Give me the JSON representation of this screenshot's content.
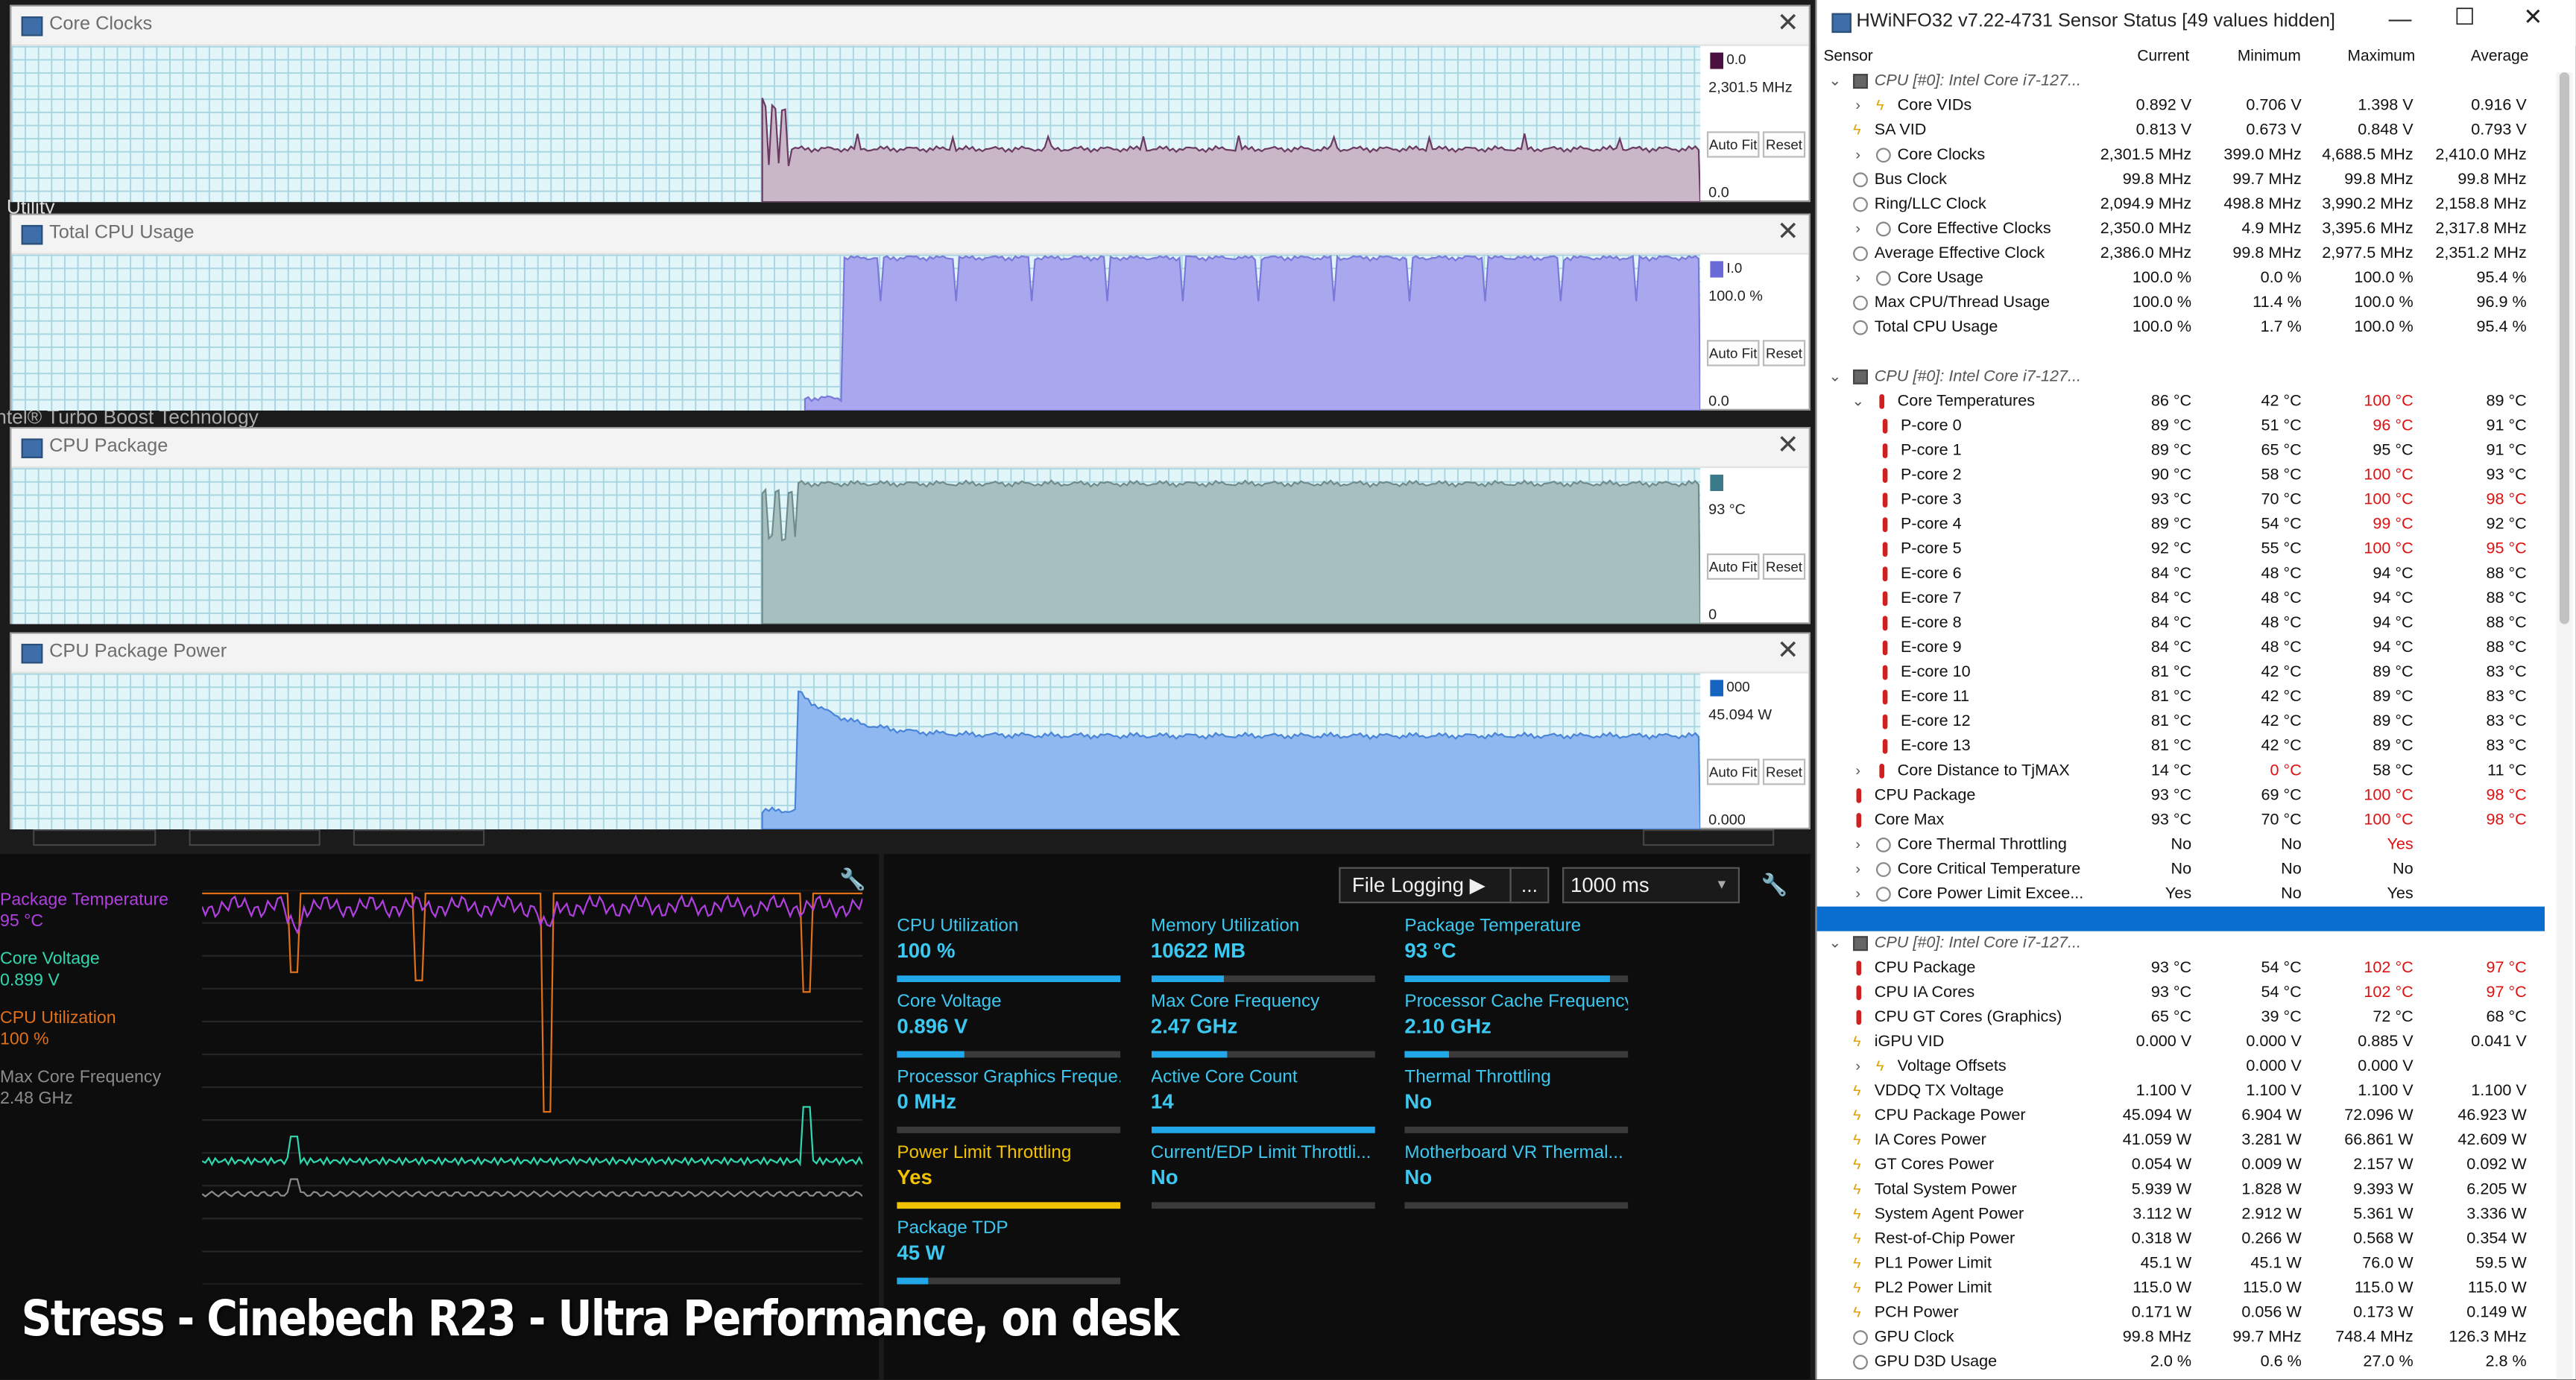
{
  "background_app": {
    "fragments": [
      "Utility",
      "Intel® Turbo Boost Technology"
    ]
  },
  "graph_windows": [
    {
      "title": "Core Clocks",
      "max_label": "0.0",
      "current": "2,301.5 MHz",
      "min_label": "0.0",
      "autofit": "Auto Fit",
      "reset": "Reset",
      "swatch": "#4a1040",
      "fill": "#c9b7c8",
      "stroke": "#6b3a62",
      "level": 0.34,
      "onset": 0.445
    },
    {
      "title": "Total CPU Usage",
      "max_label": "I.0",
      "current": "100.0 %",
      "min_label": "0.0",
      "autofit": "Auto Fit",
      "reset": "Reset",
      "swatch": "#6a6ad8",
      "fill": "#a9a8ee",
      "stroke": "#7a78d8",
      "level": 0.98,
      "onset": 0.47
    },
    {
      "title": "CPU Package",
      "max_label": "",
      "current": "93 °C",
      "min_label": "0",
      "autofit": "Auto Fit",
      "reset": "Reset",
      "swatch": "#3b7a8a",
      "fill": "#a8bfbf",
      "stroke": "#6f8c8c",
      "level": 0.9,
      "onset": 0.445
    },
    {
      "title": "CPU Package Power",
      "max_label": "000",
      "current": "45.094 W",
      "min_label": "0.000",
      "autofit": "Auto Fit",
      "reset": "Reset",
      "swatch": "#1565c0",
      "fill": "#90b8f0",
      "stroke": "#4a84d8",
      "level": 0.6,
      "onset": 0.445
    }
  ],
  "left_monitor": {
    "legend": [
      {
        "name": "Package Temperature",
        "value": "95 °C",
        "color": "#b040e0"
      },
      {
        "name": "Core Voltage",
        "value": "0.899 V",
        "color": "#30d8b0"
      },
      {
        "name": "CPU Utilization",
        "value": "100 %",
        "color": "#e0701a"
      },
      {
        "name": "Max Core Frequency",
        "value": "2.48 GHz",
        "color": "#8c8c8c"
      }
    ]
  },
  "right_monitor": {
    "file_logging": "File Logging ▶",
    "more": "...",
    "interval": "1000 ms",
    "tiles": [
      {
        "label": "CPU Utilization",
        "value": "100 %",
        "fill": 1.0,
        "warn": false
      },
      {
        "label": "Memory Utilization",
        "value": "10622  MB",
        "fill": 0.33,
        "warn": false
      },
      {
        "label": "Package Temperature",
        "value": "93 °C",
        "fill": 0.92,
        "warn": false
      },
      {
        "label": "Core Voltage",
        "value": "0.896 V",
        "fill": 0.3,
        "warn": false
      },
      {
        "label": "Max Core Frequency",
        "value": "2.47 GHz",
        "fill": 0.34,
        "warn": false
      },
      {
        "label": "Processor Cache Frequency",
        "value": "2.10 GHz",
        "fill": 0.2,
        "warn": false
      },
      {
        "label": "Processor Graphics Freque...",
        "value": "0 MHz",
        "fill": 0.0,
        "warn": false
      },
      {
        "label": "Active Core Count",
        "value": "14",
        "fill": 1.0,
        "warn": false
      },
      {
        "label": "Thermal Throttling",
        "value": "No",
        "fill": 0.0,
        "warn": false
      },
      {
        "label": "Power Limit Throttling",
        "value": "Yes",
        "fill": 1.0,
        "warn": true
      },
      {
        "label": "Current/EDP Limit Throttli...",
        "value": "No",
        "fill": 0.0,
        "warn": false
      },
      {
        "label": "Motherboard VR Thermal...",
        "value": "No",
        "fill": 0.0,
        "warn": false
      },
      {
        "label": "Package TDP",
        "value": "45 W",
        "fill": 0.14,
        "warn": false
      }
    ]
  },
  "overlay": {
    "caption": "Stress - Cinebech R23 - Ultra Performance, on desk"
  },
  "hwinfo": {
    "title": "HWiNFO32 v7.22-4731 Sensor Status [49 values hidden]",
    "columns": [
      "Sensor",
      "Current",
      "Minimum",
      "Maximum",
      "Average"
    ],
    "rows": [
      {
        "n": "CPU [#0]: Intel Core i7-127...",
        "g": 1,
        "e": "v",
        "i": "chip"
      },
      {
        "n": "Core VIDs",
        "v": [
          "0.892 V",
          "0.706 V",
          "1.398 V",
          "0.916 V"
        ],
        "e": ">",
        "s": 1,
        "i": "volt"
      },
      {
        "n": "SA VID",
        "v": [
          "0.813 V",
          "0.673 V",
          "0.848 V",
          "0.793 V"
        ],
        "i": "volt"
      },
      {
        "n": "Core Clocks",
        "v": [
          "2,301.5 MHz",
          "399.0 MHz",
          "4,688.5 MHz",
          "2,410.0 MHz"
        ],
        "e": ">",
        "s": 1,
        "i": "clock"
      },
      {
        "n": "Bus Clock",
        "v": [
          "99.8 MHz",
          "99.7 MHz",
          "99.8 MHz",
          "99.8 MHz"
        ],
        "i": "clock"
      },
      {
        "n": "Ring/LLC Clock",
        "v": [
          "2,094.9 MHz",
          "498.8 MHz",
          "3,990.2 MHz",
          "2,158.8 MHz"
        ],
        "i": "clock"
      },
      {
        "n": "Core Effective Clocks",
        "v": [
          "2,350.0 MHz",
          "4.9 MHz",
          "3,395.6 MHz",
          "2,317.8 MHz"
        ],
        "e": ">",
        "s": 1,
        "i": "clock"
      },
      {
        "n": "Average Effective Clock",
        "v": [
          "2,386.0 MHz",
          "99.8 MHz",
          "2,977.5 MHz",
          "2,351.2 MHz"
        ],
        "i": "clock"
      },
      {
        "n": "Core Usage",
        "v": [
          "100.0 %",
          "0.0 %",
          "100.0 %",
          "95.4 %"
        ],
        "e": ">",
        "s": 1,
        "i": "clock"
      },
      {
        "n": "Max CPU/Thread Usage",
        "v": [
          "100.0 %",
          "11.4 %",
          "100.0 %",
          "96.9 %"
        ],
        "i": "clock"
      },
      {
        "n": "Total CPU Usage",
        "v": [
          "100.0 %",
          "1.7 %",
          "100.0 %",
          "95.4 %"
        ],
        "i": "clock"
      },
      {
        "n": "",
        "blank": 1
      },
      {
        "n": "CPU [#0]: Intel Core i7-127...",
        "g": 1,
        "e": "v",
        "i": "chip"
      },
      {
        "n": "Core Temperatures",
        "v": [
          "86 °C",
          "42 °C",
          "100 °C",
          "89 °C"
        ],
        "e": "v",
        "s": 1,
        "i": "temp",
        "r": [
          2
        ]
      },
      {
        "n": "P-core 0",
        "v": [
          "89 °C",
          "51 °C",
          "96 °C",
          "91 °C"
        ],
        "s": 2,
        "i": "temp",
        "r": [
          2
        ]
      },
      {
        "n": "P-core 1",
        "v": [
          "89 °C",
          "65 °C",
          "95 °C",
          "91 °C"
        ],
        "s": 2,
        "i": "temp"
      },
      {
        "n": "P-core 2",
        "v": [
          "90 °C",
          "58 °C",
          "100 °C",
          "93 °C"
        ],
        "s": 2,
        "i": "temp",
        "r": [
          2
        ]
      },
      {
        "n": "P-core 3",
        "v": [
          "93 °C",
          "70 °C",
          "100 °C",
          "98 °C"
        ],
        "s": 2,
        "i": "temp",
        "r": [
          2,
          3
        ]
      },
      {
        "n": "P-core 4",
        "v": [
          "89 °C",
          "54 °C",
          "99 °C",
          "92 °C"
        ],
        "s": 2,
        "i": "temp",
        "r": [
          2
        ]
      },
      {
        "n": "P-core 5",
        "v": [
          "92 °C",
          "55 °C",
          "100 °C",
          "95 °C"
        ],
        "s": 2,
        "i": "temp",
        "r": [
          2,
          3
        ]
      },
      {
        "n": "E-core 6",
        "v": [
          "84 °C",
          "48 °C",
          "94 °C",
          "88 °C"
        ],
        "s": 2,
        "i": "temp"
      },
      {
        "n": "E-core 7",
        "v": [
          "84 °C",
          "48 °C",
          "94 °C",
          "88 °C"
        ],
        "s": 2,
        "i": "temp"
      },
      {
        "n": "E-core 8",
        "v": [
          "84 °C",
          "48 °C",
          "94 °C",
          "88 °C"
        ],
        "s": 2,
        "i": "temp"
      },
      {
        "n": "E-core 9",
        "v": [
          "84 °C",
          "48 °C",
          "94 °C",
          "88 °C"
        ],
        "s": 2,
        "i": "temp"
      },
      {
        "n": "E-core 10",
        "v": [
          "81 °C",
          "42 °C",
          "89 °C",
          "83 °C"
        ],
        "s": 2,
        "i": "temp"
      },
      {
        "n": "E-core 11",
        "v": [
          "81 °C",
          "42 °C",
          "89 °C",
          "83 °C"
        ],
        "s": 2,
        "i": "temp"
      },
      {
        "n": "E-core 12",
        "v": [
          "81 °C",
          "42 °C",
          "89 °C",
          "83 °C"
        ],
        "s": 2,
        "i": "temp"
      },
      {
        "n": "E-core 13",
        "v": [
          "81 °C",
          "42 °C",
          "89 °C",
          "83 °C"
        ],
        "s": 2,
        "i": "temp"
      },
      {
        "n": "Core Distance to TjMAX",
        "v": [
          "14 °C",
          "0 °C",
          "58 °C",
          "11 °C"
        ],
        "e": ">",
        "s": 1,
        "i": "temp",
        "r": [
          1
        ]
      },
      {
        "n": "CPU Package",
        "v": [
          "93 °C",
          "69 °C",
          "100 °C",
          "98 °C"
        ],
        "i": "temp",
        "r": [
          2,
          3
        ]
      },
      {
        "n": "Core Max",
        "v": [
          "93 °C",
          "70 °C",
          "100 °C",
          "98 °C"
        ],
        "i": "temp",
        "r": [
          2,
          3
        ]
      },
      {
        "n": "Core Thermal Throttling",
        "v": [
          "No",
          "No",
          "Yes",
          ""
        ],
        "e": ">",
        "s": 1,
        "i": "clock",
        "r": [
          2
        ]
      },
      {
        "n": "Core Critical Temperature",
        "v": [
          "No",
          "No",
          "No",
          ""
        ],
        "e": ">",
        "s": 1,
        "i": "clock"
      },
      {
        "n": "Core Power Limit Excee...",
        "v": [
          "Yes",
          "No",
          "Yes",
          ""
        ],
        "e": ">",
        "s": 1,
        "i": "clock"
      },
      {
        "n": "",
        "sel": 1
      },
      {
        "n": "CPU [#0]: Intel Core i7-127...",
        "g": 1,
        "e": "v",
        "i": "chip"
      },
      {
        "n": "CPU Package",
        "v": [
          "93 °C",
          "54 °C",
          "102 °C",
          "97 °C"
        ],
        "i": "temp",
        "r": [
          2,
          3
        ]
      },
      {
        "n": "CPU IA Cores",
        "v": [
          "93 °C",
          "54 °C",
          "102 °C",
          "97 °C"
        ],
        "i": "temp",
        "r": [
          2,
          3
        ]
      },
      {
        "n": "CPU GT Cores (Graphics)",
        "v": [
          "65 °C",
          "39 °C",
          "72 °C",
          "68 °C"
        ],
        "i": "temp"
      },
      {
        "n": "iGPU VID",
        "v": [
          "0.000 V",
          "0.000 V",
          "0.885 V",
          "0.041 V"
        ],
        "i": "volt"
      },
      {
        "n": "Voltage Offsets",
        "v": [
          "",
          "0.000 V",
          "0.000 V",
          ""
        ],
        "e": ">",
        "s": 1,
        "i": "volt"
      },
      {
        "n": "VDDQ TX Voltage",
        "v": [
          "1.100 V",
          "1.100 V",
          "1.100 V",
          "1.100 V"
        ],
        "i": "volt"
      },
      {
        "n": "CPU Package Power",
        "v": [
          "45.094 W",
          "6.904 W",
          "72.096 W",
          "46.923 W"
        ],
        "i": "volt"
      },
      {
        "n": "IA Cores Power",
        "v": [
          "41.059 W",
          "3.281 W",
          "66.861 W",
          "42.609 W"
        ],
        "i": "volt"
      },
      {
        "n": "GT Cores Power",
        "v": [
          "0.054 W",
          "0.009 W",
          "2.157 W",
          "0.092 W"
        ],
        "i": "volt"
      },
      {
        "n": "Total System Power",
        "v": [
          "5.939 W",
          "1.828 W",
          "9.393 W",
          "6.205 W"
        ],
        "i": "volt"
      },
      {
        "n": "System Agent Power",
        "v": [
          "3.112 W",
          "2.912 W",
          "5.361 W",
          "3.336 W"
        ],
        "i": "volt"
      },
      {
        "n": "Rest-of-Chip Power",
        "v": [
          "0.318 W",
          "0.266 W",
          "0.568 W",
          "0.354 W"
        ],
        "i": "volt"
      },
      {
        "n": "PL1 Power Limit",
        "v": [
          "45.1 W",
          "45.1 W",
          "76.0 W",
          "59.5 W"
        ],
        "i": "volt"
      },
      {
        "n": "PL2 Power Limit",
        "v": [
          "115.0 W",
          "115.0 W",
          "115.0 W",
          "115.0 W"
        ],
        "i": "volt"
      },
      {
        "n": "PCH Power",
        "v": [
          "0.171 W",
          "0.056 W",
          "0.173 W",
          "0.149 W"
        ],
        "i": "volt"
      },
      {
        "n": "GPU Clock",
        "v": [
          "99.8 MHz",
          "99.7 MHz",
          "748.4 MHz",
          "126.3 MHz"
        ],
        "i": "clock"
      },
      {
        "n": "GPU D3D Usage",
        "v": [
          "2.0 %",
          "0.6 %",
          "27.0 %",
          "2.8 %"
        ],
        "i": "clock"
      }
    ]
  }
}
